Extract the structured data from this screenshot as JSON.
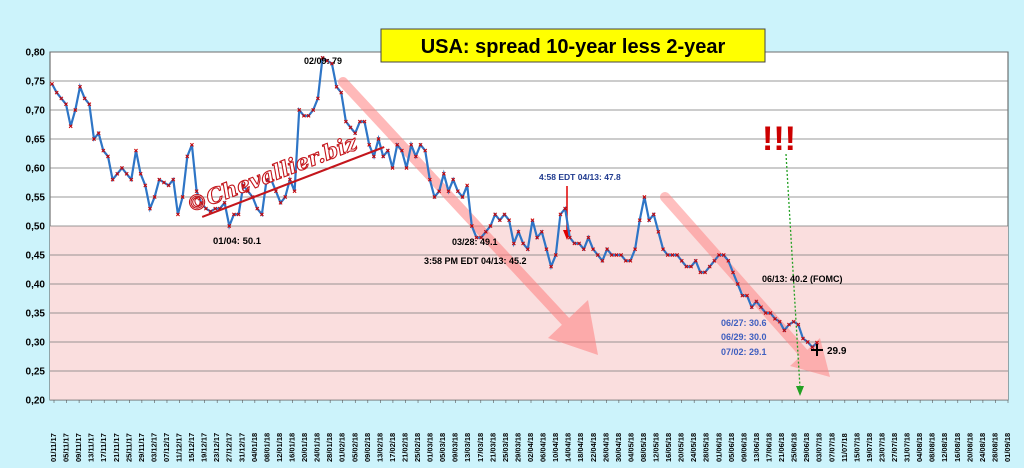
{
  "chart_data": {
    "type": "line",
    "title": "USA: spread 10-year less 2-year",
    "watermark": "©Chevallier.biz",
    "ylim": [
      0.2,
      0.8
    ],
    "yticks": [
      "0,20",
      "0,25",
      "0,30",
      "0,35",
      "0,40",
      "0,45",
      "0,50",
      "0,55",
      "0,60",
      "0,65",
      "0,70",
      "0,75",
      "0,80"
    ],
    "x_tick_labels": [
      "01/11/17",
      "05/11/17",
      "09/11/17",
      "13/11/17",
      "17/11/17",
      "21/11/17",
      "25/11/17",
      "29/11/17",
      "03/12/17",
      "07/12/17",
      "11/12/17",
      "15/12/17",
      "19/12/17",
      "23/12/17",
      "27/12/17",
      "31/12/17",
      "04/01/18",
      "08/01/18",
      "12/01/18",
      "16/01/18",
      "20/01/18",
      "24/01/18",
      "28/01/18",
      "01/02/18",
      "05/02/18",
      "09/02/18",
      "13/02/18",
      "17/02/18",
      "21/02/18",
      "25/02/18",
      "01/03/18",
      "05/03/18",
      "09/03/18",
      "13/03/18",
      "17/03/18",
      "21/03/18",
      "25/03/18",
      "29/03/18",
      "02/04/18",
      "06/04/18",
      "10/04/18",
      "14/04/18",
      "18/04/18",
      "22/04/18",
      "26/04/18",
      "30/04/18",
      "04/05/18",
      "08/05/18",
      "12/05/18",
      "16/05/18",
      "20/05/18",
      "24/05/18",
      "28/05/18",
      "01/06/18",
      "05/06/18",
      "09/06/18",
      "13/06/18",
      "17/06/18",
      "21/06/18",
      "25/06/18",
      "29/06/18",
      "03/07/18",
      "07/07/18",
      "11/07/18",
      "15/07/18",
      "19/07/18",
      "23/07/18",
      "27/07/18",
      "31/07/18",
      "04/08/18",
      "08/08/18",
      "12/08/18",
      "16/08/18",
      "20/08/18",
      "24/08/18",
      "28/08/18",
      "01/09/18"
    ],
    "series": [
      {
        "values": [
          0.745,
          0.73,
          0.72,
          0.71,
          0.672,
          0.7,
          0.74,
          0.72,
          0.71,
          0.65,
          0.66,
          0.63,
          0.62,
          0.58,
          0.59,
          0.6,
          0.59,
          0.58,
          0.63,
          0.59,
          0.57,
          0.53,
          0.55,
          0.58,
          0.575,
          0.57,
          0.58,
          0.52,
          0.55,
          0.62,
          0.64,
          0.56,
          0.54,
          0.53,
          0.525,
          0.53,
          0.53,
          0.54,
          0.5,
          0.52,
          0.52,
          0.57,
          0.56,
          0.55,
          0.53,
          0.52,
          0.58,
          0.58,
          0.56,
          0.54,
          0.55,
          0.58,
          0.56,
          0.7,
          0.69,
          0.69,
          0.7,
          0.72,
          0.79,
          0.785,
          0.78,
          0.74,
          0.73,
          0.68,
          0.67,
          0.66,
          0.68,
          0.68,
          0.64,
          0.62,
          0.65,
          0.62,
          0.63,
          0.6,
          0.64,
          0.63,
          0.6,
          0.64,
          0.62,
          0.64,
          0.63,
          0.58,
          0.55,
          0.56,
          0.59,
          0.56,
          0.58,
          0.56,
          0.55,
          0.57,
          0.5,
          0.48,
          0.48,
          0.49,
          0.5,
          0.52,
          0.51,
          0.52,
          0.51,
          0.47,
          0.49,
          0.47,
          0.46,
          0.51,
          0.48,
          0.49,
          0.46,
          0.43,
          0.45,
          0.52,
          0.53,
          0.48,
          0.47,
          0.47,
          0.46,
          0.48,
          0.46,
          0.45,
          0.44,
          0.46,
          0.45,
          0.45,
          0.45,
          0.44,
          0.44,
          0.46,
          0.51,
          0.55,
          0.51,
          0.52,
          0.49,
          0.46,
          0.45,
          0.45,
          0.45,
          0.44,
          0.43,
          0.43,
          0.44,
          0.42,
          0.42,
          0.43,
          0.44,
          0.45,
          0.45,
          0.44,
          0.42,
          0.4,
          0.38,
          0.38,
          0.36,
          0.37,
          0.36,
          0.35,
          0.35,
          0.34,
          0.335,
          0.32,
          0.33,
          0.335,
          0.33,
          0.306,
          0.3,
          0.291,
          0.299
        ],
        "marker": "x"
      }
    ],
    "reference_band": {
      "from": 0.2,
      "to": 0.5
    },
    "annotations": [
      {
        "text": "02/09: 79",
        "color": "#000000"
      },
      {
        "text": "01/04: 50.1",
        "color": "#000000"
      },
      {
        "text": "4:58 EDT 04/13: 47.8",
        "color": "#1f3a8f"
      },
      {
        "text": "03/28: 49.1",
        "color": "#000000"
      },
      {
        "text": "3:58 PM EDT 04/13: 45.2",
        "color": "#000000"
      },
      {
        "text": "06/13: 40.2 (FOMC)",
        "color": "#000000"
      },
      {
        "text": "06/27: 30.6",
        "color": "#3f5fbf"
      },
      {
        "text": "06/29: 30.0",
        "color": "#3f5fbf"
      },
      {
        "text": "07/02: 29.1",
        "color": "#3f5fbf"
      },
      {
        "text": "29.9",
        "color": "#000000"
      },
      {
        "text": "!!!",
        "color": "#cc0000"
      }
    ],
    "colors": {
      "line": "#2e75c6",
      "marker": "#cc0000",
      "band": "#fadede",
      "plot_bg": "#ffffff",
      "page_bg": "#ccf3fb",
      "title_bg": "#ffff00",
      "trend_arrow": "#ff8080"
    }
  }
}
